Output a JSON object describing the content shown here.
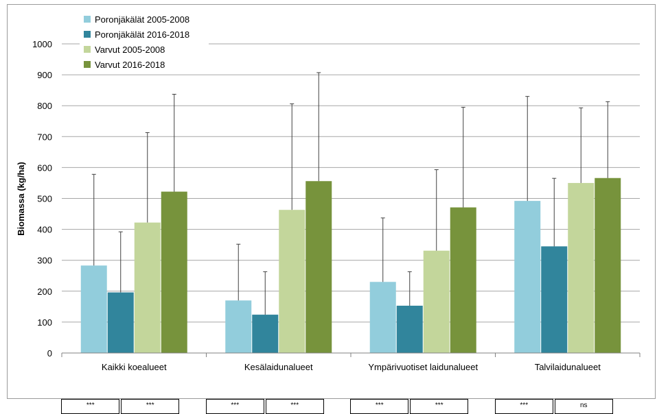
{
  "chart_data": {
    "type": "bar",
    "ylabel": "Biomassa (kg/ha)",
    "ylim": [
      0,
      1000
    ],
    "yticks": [
      0,
      100,
      200,
      300,
      400,
      500,
      600,
      700,
      800,
      900,
      1000
    ],
    "categories": [
      "Kaikki koealueet",
      "Kesälaidunalueet",
      "Ympärivuotiset laidunalueet",
      "Talvilaidunalueet"
    ],
    "series": [
      {
        "name": "Poronjäkälät 2005-2008",
        "color": "#92cddc",
        "values": [
          283,
          170,
          230,
          492
        ],
        "error_upper": [
          578,
          352,
          437,
          830
        ]
      },
      {
        "name": "Poronjäkälät 2016-2018",
        "color": "#31859c",
        "values": [
          196,
          124,
          153,
          345
        ],
        "error_upper": [
          392,
          263,
          263,
          565
        ]
      },
      {
        "name": "Varvut 2005-2008",
        "color": "#c3d69b",
        "values": [
          422,
          463,
          331,
          550
        ],
        "error_upper": [
          713,
          806,
          593,
          793
        ]
      },
      {
        "name": "Varvut 2016-2018",
        "color": "#77933c",
        "values": [
          522,
          556,
          471,
          566
        ],
        "error_upper": [
          837,
          907,
          795,
          813
        ]
      }
    ],
    "grid": true,
    "legend_position": "top-left"
  },
  "significance": {
    "groups": [
      [
        "***",
        "***"
      ],
      [
        "***",
        "***"
      ],
      [
        "***",
        "***"
      ],
      [
        "***",
        "ns"
      ]
    ]
  }
}
